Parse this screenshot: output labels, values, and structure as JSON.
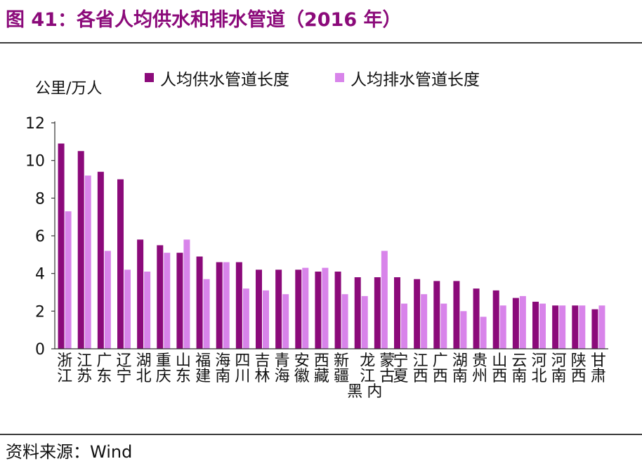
{
  "figure": {
    "title": "图 41：各省人均供水和排水管道（2016 年）",
    "source": "资料来源：Wind"
  },
  "colors": {
    "title": "#8B0A7A",
    "supply": "#8B0A7A",
    "drainage": "#D884EA",
    "axis": "#333333"
  },
  "chart_data": {
    "type": "bar",
    "ylabel": "公里/万人",
    "ylim": [
      0,
      12
    ],
    "yticks": [
      0,
      2,
      4,
      6,
      8,
      10,
      12
    ],
    "grid": false,
    "legend_position": "top",
    "categories": [
      "浙江",
      "江苏",
      "广东",
      "辽宁",
      "湖北",
      "重庆",
      "山东",
      "福建",
      "海南",
      "四川",
      "吉林",
      "青海",
      "安徽",
      "西藏",
      "新疆",
      "黑龙江",
      "内蒙古",
      "宁夏",
      "江西",
      "广西",
      "湖南",
      "贵州",
      "山西",
      "云南",
      "河北",
      "河南",
      "陕西",
      "甘肃"
    ],
    "series": [
      {
        "name": "人均供水管道长度",
        "values": [
          10.9,
          10.5,
          9.4,
          9.0,
          5.8,
          5.5,
          5.1,
          4.9,
          4.6,
          4.6,
          4.2,
          4.2,
          4.2,
          4.1,
          4.1,
          3.8,
          3.8,
          3.8,
          3.7,
          3.6,
          3.6,
          3.2,
          3.1,
          2.7,
          2.5,
          2.3,
          2.3,
          2.1
        ]
      },
      {
        "name": "人均排水管道长度",
        "values": [
          7.3,
          9.2,
          5.2,
          4.2,
          4.1,
          5.1,
          5.8,
          3.7,
          4.6,
          3.2,
          3.1,
          2.9,
          4.3,
          4.3,
          2.9,
          2.8,
          5.2,
          2.4,
          2.9,
          2.4,
          2.0,
          1.7,
          2.3,
          2.8,
          2.4,
          2.3,
          2.3,
          2.3
        ]
      }
    ]
  }
}
